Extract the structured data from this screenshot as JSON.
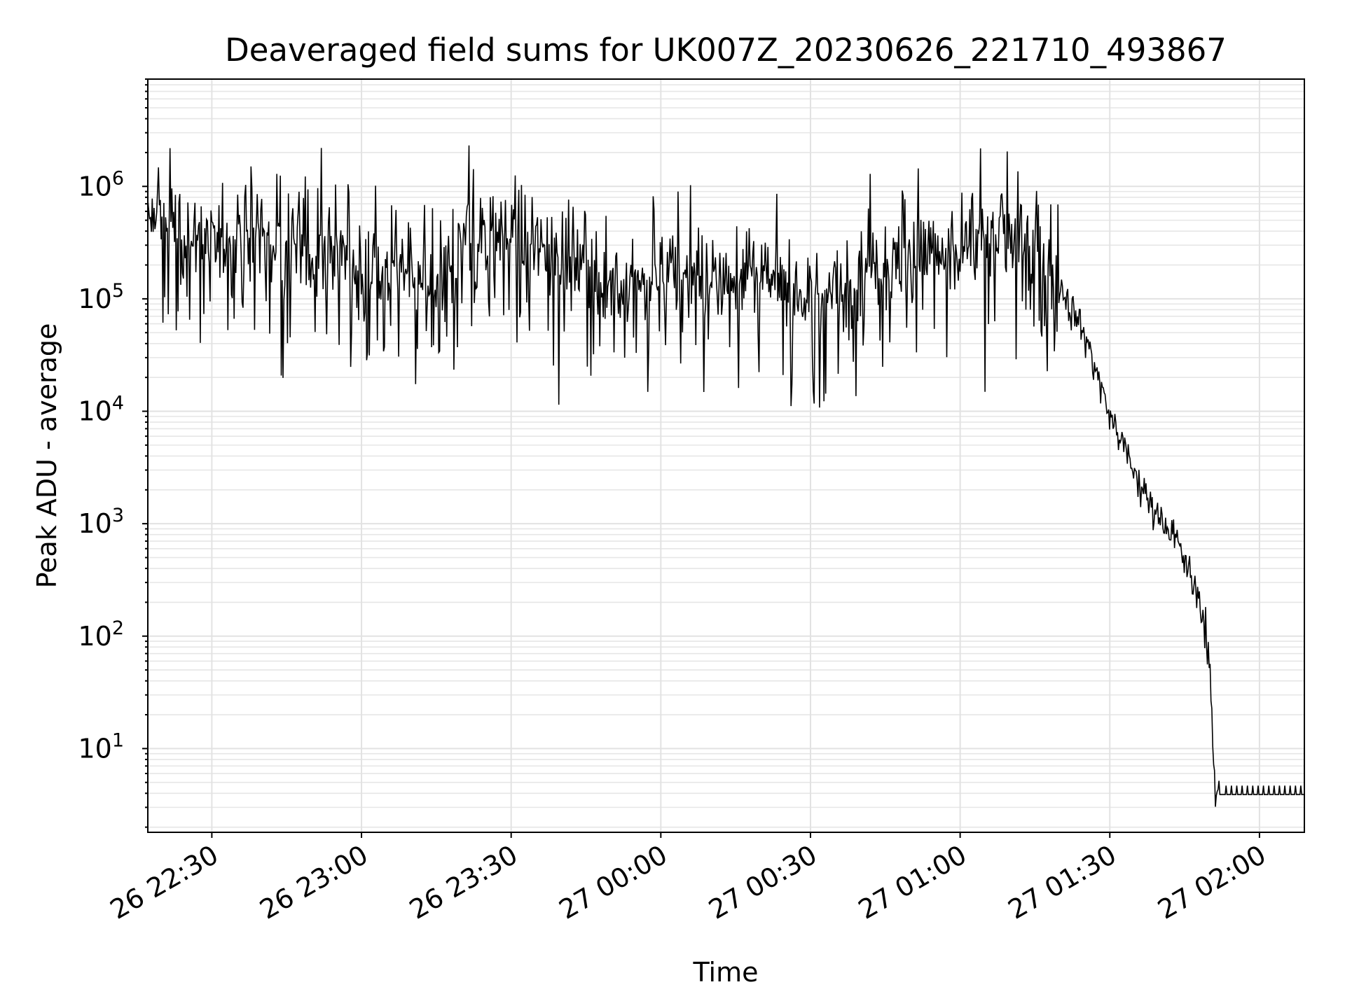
{
  "chart_data": {
    "type": "line",
    "title": "Deaveraged field sums for UK007Z_20230626_221710_493867",
    "xlabel": "Time",
    "ylabel": "Peak ADU - average",
    "x_unit": "time of day",
    "xlim": [
      "2023-06-26 22:17:10",
      "2023-06-27 02:09:00"
    ],
    "x_ticks": [
      "26 22:30",
      "26 23:00",
      "26 23:30",
      "27 00:00",
      "27 00:30",
      "27 01:00",
      "27 01:30",
      "27 02:00"
    ],
    "y_scale": "log",
    "ylim": [
      1.8,
      9000000
    ],
    "y_ticks": [
      {
        "base": "10",
        "exp": "1",
        "value": 10
      },
      {
        "base": "10",
        "exp": "2",
        "value": 100
      },
      {
        "base": "10",
        "exp": "3",
        "value": 1000
      },
      {
        "base": "10",
        "exp": "4",
        "value": 10000
      },
      {
        "base": "10",
        "exp": "5",
        "value": 100000
      },
      {
        "base": "10",
        "exp": "6",
        "value": 1000000
      }
    ],
    "grid": "major and minor",
    "line_color": "#000000",
    "series": [
      {
        "x": [
          "22:17",
          "22:19",
          "22:21",
          "22:23",
          "22:25",
          "22:27",
          "22:29",
          "22:31",
          "22:33",
          "22:35",
          "22:38",
          "22:41",
          "22:44",
          "22:47",
          "22:50",
          "22:53",
          "22:56",
          "22:59",
          "23:01",
          "23:03",
          "23:05",
          "23:08",
          "23:11",
          "23:13",
          "23:15",
          "23:17",
          "23:19",
          "23:21",
          "23:22",
          "23:23",
          "23:25",
          "23:27",
          "23:29",
          "23:31",
          "23:34",
          "23:37",
          "23:40",
          "23:43",
          "23:46",
          "23:49",
          "23:52",
          "23:55",
          "23:58",
          "00:01",
          "00:04",
          "00:07",
          "00:09",
          "00:12",
          "00:15",
          "00:16",
          "00:17",
          "00:18",
          "00:20",
          "00:23",
          "00:26",
          "00:29",
          "00:32",
          "00:35",
          "00:38",
          "00:40",
          "00:41",
          "00:43",
          "00:46",
          "00:49",
          "00:52",
          "00:55",
          "00:57",
          "01:00",
          "01:02",
          "01:05",
          "01:08",
          "01:11",
          "01:14",
          "01:17",
          "01:20",
          "01:22",
          "01:24",
          "01:26",
          "01:28",
          "01:30",
          "01:32",
          "01:34",
          "01:36",
          "01:38",
          "01:40",
          "01:42",
          "01:44",
          "01:46",
          "01:48",
          "01:49",
          "01:50",
          "01:51",
          "01:52",
          "01:55",
          "02:00",
          "02:05",
          "02:09"
        ],
        "y": [
          400000,
          520000,
          450000,
          430000,
          380000,
          340000,
          310000,
          330000,
          350000,
          340000,
          330000,
          320000,
          300000,
          280000,
          260000,
          250000,
          240000,
          220000,
          200000,
          190000,
          180000,
          170000,
          160000,
          120000,
          140000,
          180000,
          240000,
          400000,
          420000,
          350000,
          300000,
          350000,
          420000,
          380000,
          280000,
          250000,
          220000,
          190000,
          170000,
          150000,
          140000,
          130000,
          150000,
          180000,
          170000,
          160000,
          150000,
          150000,
          140000,
          160000,
          200000,
          170000,
          150000,
          140000,
          130000,
          120000,
          110000,
          110000,
          120000,
          150000,
          200000,
          180000,
          200000,
          250000,
          270000,
          250000,
          230000,
          220000,
          250000,
          330000,
          360000,
          320000,
          270000,
          240000,
          140000,
          85000,
          60000,
          35000,
          18000,
          9000,
          6000,
          3500,
          2200,
          1500,
          1200,
          900,
          600,
          350,
          200,
          130,
          60,
          3.9,
          3.9,
          3.9,
          3.9,
          3.9,
          3.9
        ]
      }
    ]
  }
}
